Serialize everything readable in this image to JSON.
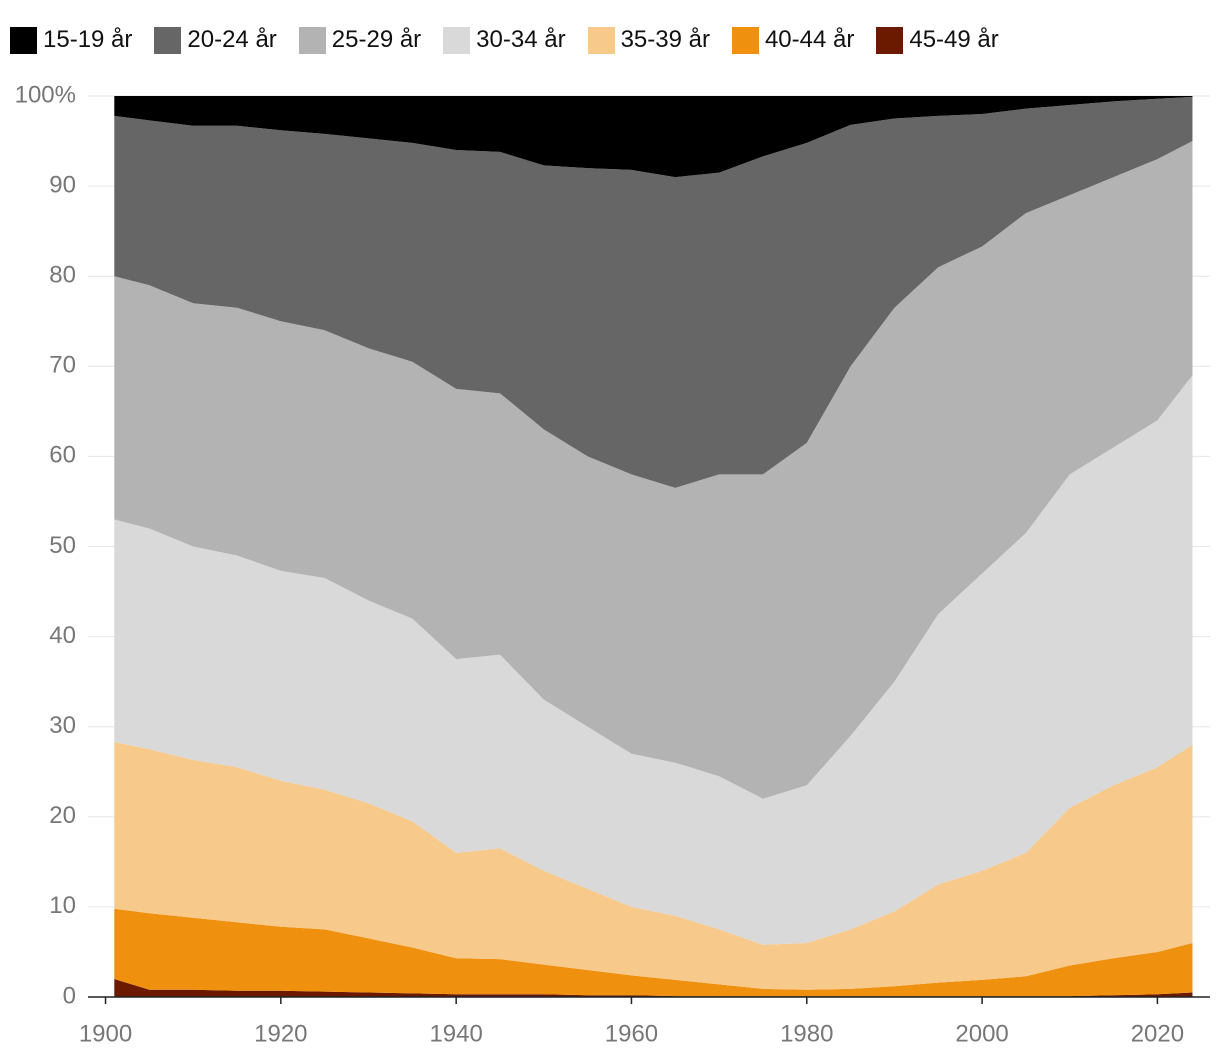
{
  "chart_data": {
    "type": "stacked-area",
    "x": [
      1901,
      1905,
      1910,
      1915,
      1920,
      1925,
      1930,
      1935,
      1940,
      1945,
      1950,
      1955,
      1960,
      1965,
      1970,
      1975,
      1980,
      1985,
      1990,
      1995,
      2000,
      2005,
      2010,
      2015,
      2020,
      2024
    ],
    "series": [
      {
        "name": "15-19 år",
        "color": "#000000",
        "values": [
          2.2,
          2.7,
          3.3,
          3.3,
          3.8,
          4.2,
          4.7,
          5.2,
          6,
          6.2,
          7.7,
          8,
          8.2,
          9,
          8.5,
          6.7,
          5.2,
          3.2,
          2.5,
          2.2,
          2,
          1.4,
          1,
          0.6,
          0.3,
          0.1
        ]
      },
      {
        "name": "20-24 år",
        "color": "#666666",
        "values": [
          17.8,
          18.3,
          19.7,
          20.2,
          21.2,
          21.8,
          23.3,
          24.3,
          26.5,
          26.8,
          29.3,
          32,
          33.8,
          34.5,
          33.5,
          35.3,
          33.3,
          26.8,
          21,
          16.8,
          14.7,
          11.6,
          10,
          8.4,
          6.7,
          4.9
        ]
      },
      {
        "name": "25-29 år",
        "color": "#b3b3b3",
        "values": [
          27,
          27,
          27,
          27.5,
          27.7,
          27.5,
          28,
          28.5,
          30,
          29,
          30,
          30,
          31,
          30.5,
          33.5,
          36,
          38,
          41,
          41.5,
          38.5,
          36.3,
          35.5,
          31,
          30,
          29,
          26
        ]
      },
      {
        "name": "30-34 år",
        "color": "#d9d9d9",
        "values": [
          24.7,
          24.5,
          23.7,
          23.5,
          23.3,
          23.5,
          22.5,
          22.5,
          21.5,
          21.5,
          19,
          18,
          17,
          17,
          17,
          16.2,
          17.5,
          21.5,
          25.5,
          30,
          33,
          35.5,
          37,
          37.5,
          38.5,
          41
        ]
      },
      {
        "name": "35-39 år",
        "color": "#f7c98a",
        "values": [
          18.5,
          18.2,
          17.5,
          17.2,
          16.2,
          15.5,
          15,
          14,
          11.7,
          12.3,
          10.4,
          9,
          7.6,
          7.1,
          6.1,
          4.9,
          5.2,
          6.6,
          8.3,
          10.9,
          12.1,
          13.7,
          17.5,
          19.2,
          20.5,
          22
        ]
      },
      {
        "name": "40-44 år",
        "color": "#f0900f",
        "values": [
          7.8,
          8.5,
          8,
          7.6,
          7.1,
          6.9,
          6,
          5.1,
          4,
          3.9,
          3.3,
          2.8,
          2.2,
          1.8,
          1.3,
          0.8,
          0.7,
          0.8,
          1.1,
          1.5,
          1.8,
          2.2,
          3.4,
          4.1,
          4.7,
          5.5
        ]
      },
      {
        "name": "45-49 år",
        "color": "#6b1a00",
        "values": [
          2,
          0.8,
          0.8,
          0.7,
          0.7,
          0.6,
          0.5,
          0.4,
          0.3,
          0.3,
          0.3,
          0.2,
          0.2,
          0.1,
          0.1,
          0.1,
          0.1,
          0.1,
          0.1,
          0.1,
          0.1,
          0.1,
          0.1,
          0.2,
          0.3,
          0.5
        ]
      }
    ],
    "xlim": [
      1898,
      2026
    ],
    "xticks": [
      1900,
      1920,
      1940,
      1960,
      1980,
      2000,
      2020
    ],
    "ylim": [
      0,
      100
    ],
    "yticks": [
      0,
      10,
      20,
      30,
      40,
      50,
      60,
      70,
      80,
      90,
      {
        "value": 100,
        "label": "100%"
      }
    ],
    "grid": true
  }
}
